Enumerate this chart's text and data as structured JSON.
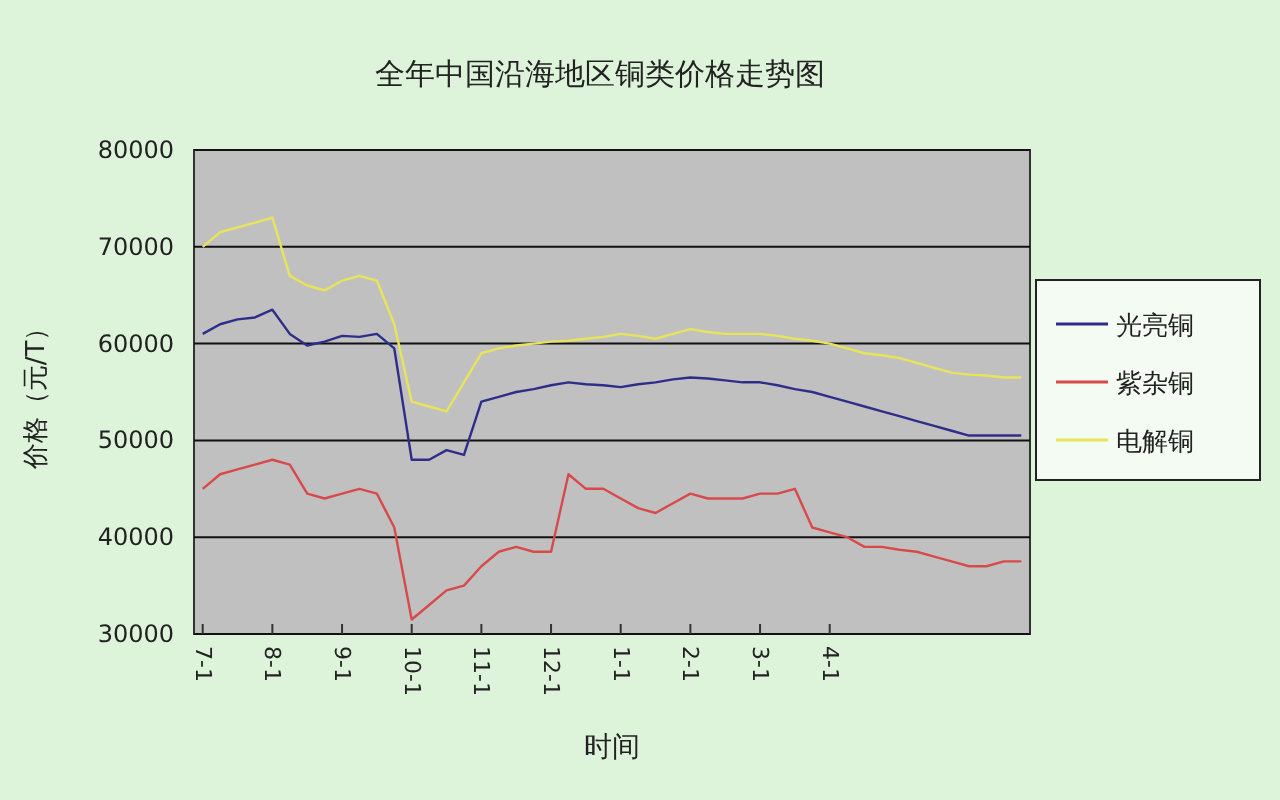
{
  "chart_data": {
    "type": "line",
    "title": "全年中国沿海地区铜类价格走势图",
    "xlabel": "时间",
    "ylabel": "价格（元/T）",
    "categories": [
      "7-1",
      null,
      null,
      null,
      "8-1",
      null,
      null,
      null,
      "9-1",
      null,
      null,
      null,
      "10-1",
      null,
      null,
      null,
      "11-1",
      null,
      null,
      null,
      "12-1",
      null,
      null,
      null,
      "1-1",
      null,
      null,
      null,
      "2-1",
      null,
      null,
      null,
      "3-1",
      null,
      null,
      null,
      "4-1",
      null,
      null,
      null,
      null,
      null,
      null,
      null,
      null,
      null,
      null,
      null
    ],
    "ylim": [
      30000,
      80000
    ],
    "yticks": [
      30000,
      40000,
      50000,
      60000,
      70000,
      80000
    ],
    "grid": "y",
    "legend": "right",
    "marker": "none",
    "line_style": "solid",
    "series": [
      {
        "name": "光亮铜",
        "color": "#2e2e8a",
        "values": [
          61000,
          62000,
          62500,
          62700,
          63500,
          61000,
          59800,
          60200,
          60800,
          60700,
          61000,
          59500,
          48000,
          48000,
          49000,
          48500,
          54000,
          54500,
          55000,
          55300,
          55700,
          56000,
          55800,
          55700,
          55500,
          55800,
          56000,
          56300,
          56500,
          56400,
          56200,
          56000,
          56000,
          55700,
          55300,
          55000,
          54500,
          54000,
          53500,
          53000,
          52500,
          52000,
          51500,
          51000,
          50500,
          50500,
          50500,
          50500
        ]
      },
      {
        "name": "紫杂铜",
        "color": "#d84a4a",
        "values": [
          45000,
          46500,
          47000,
          47500,
          48000,
          47500,
          44500,
          44000,
          44500,
          45000,
          44500,
          41000,
          31500,
          33000,
          34500,
          35000,
          37000,
          38500,
          39000,
          38500,
          38500,
          46500,
          45000,
          45000,
          44000,
          43000,
          42500,
          43500,
          44500,
          44000,
          44000,
          44000,
          44500,
          44500,
          45000,
          41000,
          40500,
          40000,
          39000,
          39000,
          38700,
          38500,
          38000,
          37500,
          37000,
          37000,
          37500,
          37500
        ]
      },
      {
        "name": "电解铜",
        "color": "#e8e45a",
        "values": [
          70000,
          71500,
          72000,
          72500,
          73000,
          67000,
          66000,
          65500,
          66500,
          67000,
          66500,
          62000,
          54000,
          53500,
          53000,
          56000,
          59000,
          59500,
          59800,
          60000,
          60200,
          60300,
          60500,
          60700,
          61000,
          60800,
          60500,
          61000,
          61500,
          61200,
          61000,
          61000,
          61000,
          60800,
          60500,
          60300,
          60000,
          59500,
          59000,
          58800,
          58500,
          58000,
          57500,
          57000,
          56800,
          56700,
          56500,
          56500
        ]
      }
    ]
  }
}
